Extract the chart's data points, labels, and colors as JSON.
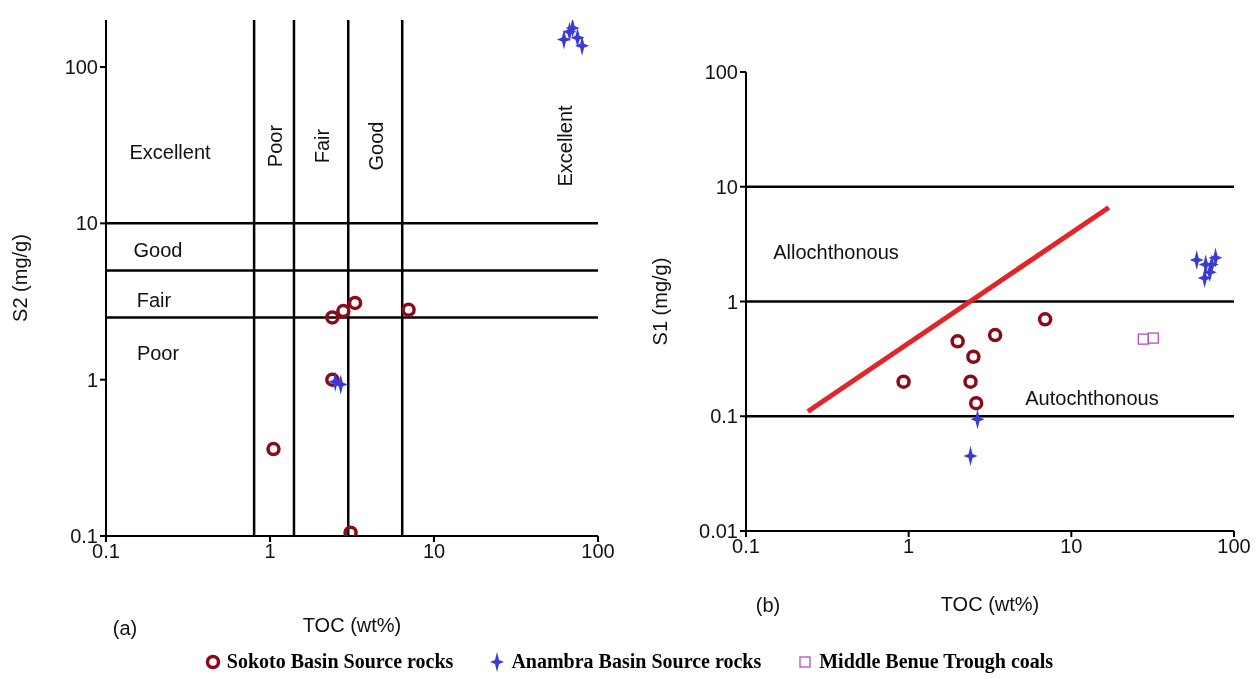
{
  "chart_data": [
    {
      "type": "scatter",
      "xlabel": "TOC (wt%)",
      "ylabel": "S2 (mg/g)",
      "log": "xy",
      "xlim": [
        0.1,
        100
      ],
      "xticks": [
        0.1,
        1,
        10,
        100
      ],
      "ylim": [
        0.1,
        200
      ],
      "yticks": [
        0.1,
        1,
        10,
        100
      ],
      "legend": "bottom",
      "ref_lines": [
        {
          "axis": "y",
          "value": 10
        },
        {
          "axis": "y",
          "value": 5
        },
        {
          "axis": "y",
          "value": 2.5
        },
        {
          "axis": "x",
          "value": 0.8
        },
        {
          "axis": "x",
          "value": 1.4
        },
        {
          "axis": "x",
          "value": 3
        },
        {
          "axis": "x",
          "value": 6.4
        }
      ],
      "annotations": [
        "Excellent",
        "Good",
        "Fair",
        "Poor",
        "Poor",
        "Fair",
        "Good",
        "Excellent",
        "(a)"
      ],
      "series": [
        {
          "name": "Sokoto Basin Source rocks",
          "color": "#8b0a1a",
          "marker": "circle",
          "x": [
            2.4,
            2.8,
            3.3,
            7.0,
            2.4,
            1.05,
            3.1
          ],
          "values": [
            2.5,
            2.75,
            3.1,
            2.8,
            1.0,
            0.36,
            0.105
          ]
        },
        {
          "name": "Anambra Basin Source rocks",
          "color": "#3a3ad6",
          "marker": "star",
          "x": [
            2.5,
            2.7,
            67,
            75,
            80,
            62,
            70
          ],
          "values": [
            0.97,
            0.93,
            168,
            154,
            137,
            150,
            178
          ]
        }
      ]
    },
    {
      "type": "scatter",
      "xlabel": "TOC (wt%)",
      "ylabel": "S1 (mg/g)",
      "log": "xy",
      "xlim": [
        0.1,
        100
      ],
      "xticks": [
        0.1,
        1,
        10,
        100
      ],
      "ylim": [
        0.01,
        100
      ],
      "yticks": [
        0.01,
        0.1,
        1,
        10,
        100
      ],
      "legend": "bottom",
      "ref_lines": [
        {
          "axis": "y",
          "value": 10
        },
        {
          "axis": "y",
          "value": 1
        },
        {
          "axis": "y",
          "value": 0.1
        }
      ],
      "annotations": [
        "(b)",
        "Allochthonous",
        "Autochthonous"
      ],
      "series": [
        {
          "name": "Sokoto Basin Source rocks",
          "color": "#8b0a1a",
          "marker": "circle",
          "x": [
            0.93,
            2.0,
            2.5,
            2.4,
            2.6,
            3.4,
            6.9
          ],
          "values": [
            0.2,
            0.45,
            0.33,
            0.2,
            0.13,
            0.51,
            0.7
          ]
        },
        {
          "name": "Anambra Basin Source rocks",
          "color": "#3a3ad6",
          "marker": "star",
          "x": [
            2.65,
            2.4,
            59,
            67,
            77,
            66,
            71,
            73
          ],
          "values": [
            0.094,
            0.045,
            2.3,
            2.1,
            2.4,
            1.6,
            1.8,
            2.1
          ]
        },
        {
          "name": "Middle Benue Trough coals",
          "color": "#b050c0",
          "marker": "square",
          "x": [
            27.7,
            31.9
          ],
          "values": [
            0.47,
            0.48
          ]
        },
        {
          "type": "line",
          "color": "#e0262a",
          "marker": "none",
          "x": [
            0.24,
            17
          ],
          "values": [
            0.11,
            6.6
          ]
        }
      ]
    }
  ]
}
